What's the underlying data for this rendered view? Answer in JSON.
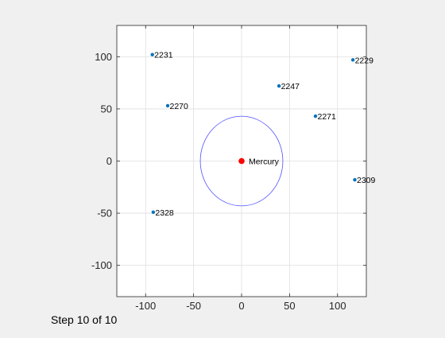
{
  "chart_data": {
    "type": "scatter",
    "title": "",
    "xlabel": "",
    "ylabel": "",
    "xlim": [
      -130,
      130
    ],
    "ylim": [
      -130,
      130
    ],
    "xticks": [
      -100,
      -50,
      0,
      50,
      100
    ],
    "yticks": [
      -100,
      -50,
      0,
      50,
      100
    ],
    "xtick_labels": [
      "-100",
      "-50",
      "0",
      "50",
      "100"
    ],
    "ytick_labels": [
      "-100",
      "-50",
      "0",
      "50",
      "100"
    ],
    "grid": true,
    "center": {
      "label": "Mercury",
      "x": 0,
      "y": 0,
      "color": "#ff0000"
    },
    "circle": {
      "x": 0,
      "y": 0,
      "radius": 43,
      "color": "#5050ff"
    },
    "points": [
      {
        "label": "2231",
        "x": -93,
        "y": 102
      },
      {
        "label": "2229",
        "x": 116,
        "y": 97
      },
      {
        "label": "2247",
        "x": 39,
        "y": 72
      },
      {
        "label": "2270",
        "x": -77,
        "y": 53
      },
      {
        "label": "2271",
        "x": 77,
        "y": 43
      },
      {
        "label": "2309",
        "x": 118,
        "y": -18
      },
      {
        "label": "2328",
        "x": -92,
        "y": -49
      }
    ],
    "point_color": "#0072bd"
  },
  "status": {
    "step_text": "Step 10 of 10"
  }
}
